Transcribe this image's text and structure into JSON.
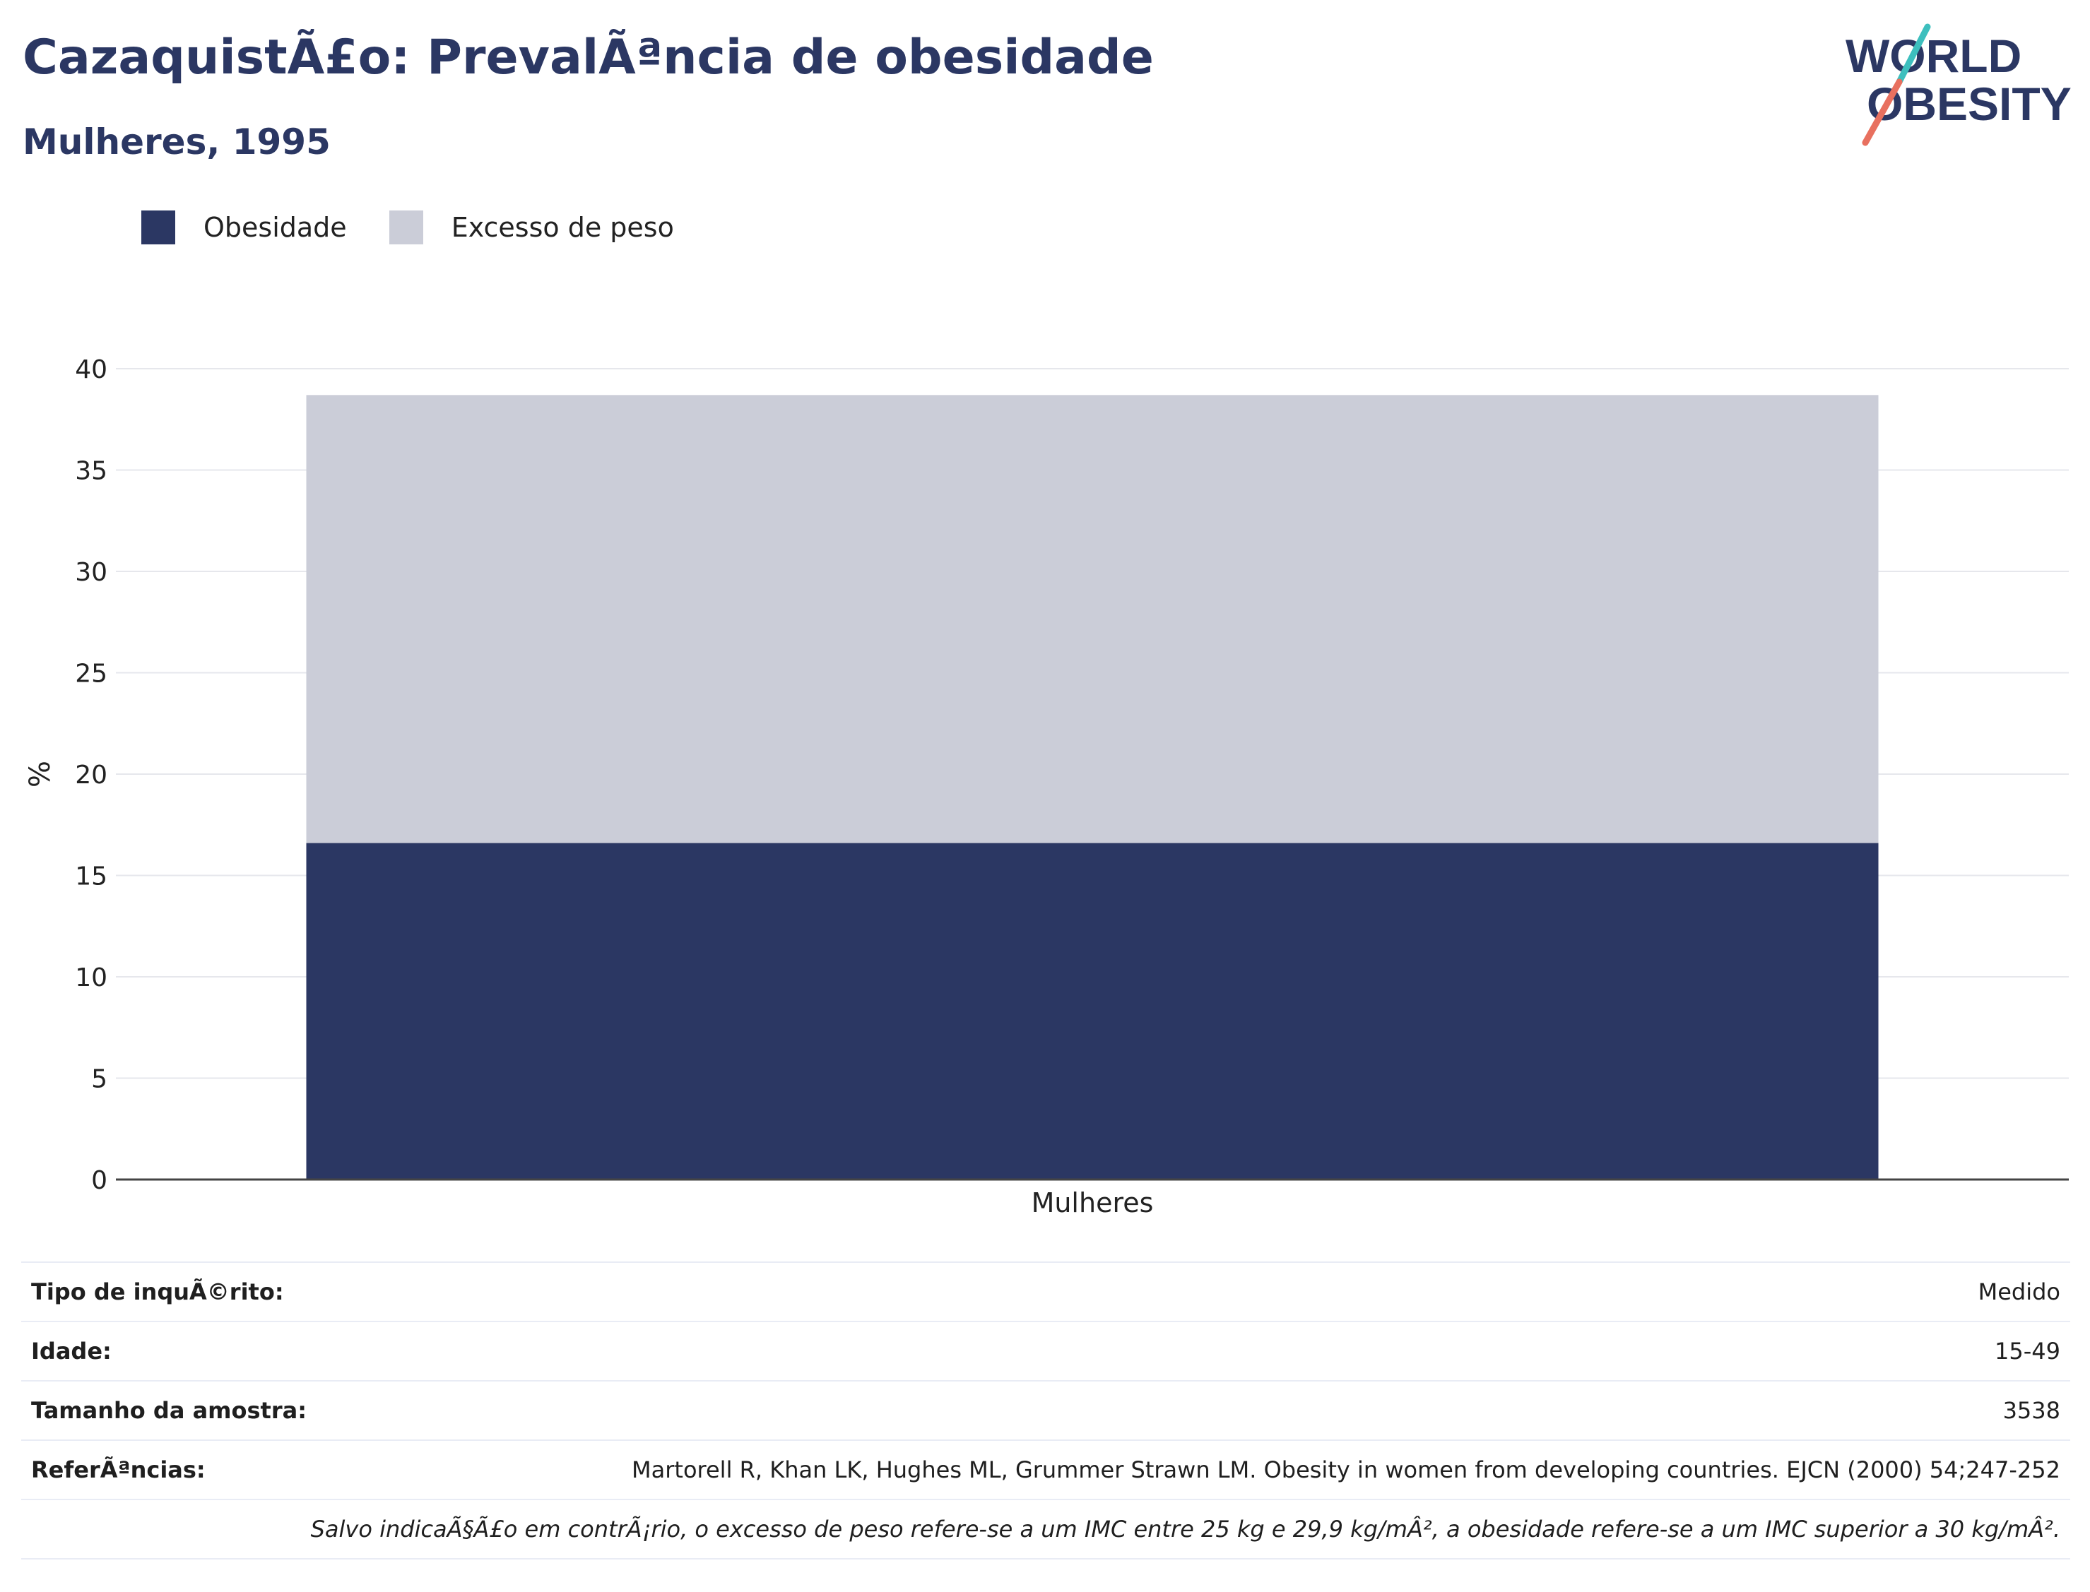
{
  "header": {
    "title": "CazaquistÃ£o: PrevalÃªncia de obesidade",
    "subtitle": "Mulheres, 1995"
  },
  "logo": {
    "line1": "WORLD",
    "line2": "OBESITY"
  },
  "legend": [
    {
      "label": "Obesidade",
      "color": "#2b3763"
    },
    {
      "label": "Excesso de peso",
      "color": "#cbcdd8"
    }
  ],
  "chart_data": {
    "type": "bar",
    "stacked": true,
    "categories": [
      "Mulheres"
    ],
    "series": [
      {
        "name": "Obesidade",
        "values": [
          16.6
        ],
        "color": "#2b3763"
      },
      {
        "name": "Excesso de peso",
        "values": [
          22.1
        ],
        "color": "#cbcdd8"
      }
    ],
    "ylabel": "%",
    "xlabel": "",
    "ylim": [
      0,
      40
    ],
    "yticks": [
      0,
      5,
      10,
      15,
      20,
      25,
      30,
      35,
      40
    ],
    "grid": true,
    "legend_position": "top-left"
  },
  "info_table": [
    {
      "key": "Tipo de inquÃ©rito:",
      "value": "Medido"
    },
    {
      "key": "Idade:",
      "value": "15-49"
    },
    {
      "key": "Tamanho da amostra:",
      "value": "3538"
    },
    {
      "key": "ReferÃªncias:",
      "value": "Martorell R, Khan LK, Hughes ML, Grummer Strawn LM. Obesity in women from developing countries. EJCN (2000) 54;247-252"
    }
  ],
  "footnote": "Salvo indicaÃ§Ã£o em contrÃ¡rio, o excesso de peso refere-se a um IMC entre 25 kg e 29,9 kg/mÂ², a obesidade refere-se a um IMC superior a 30 kg/mÂ²."
}
